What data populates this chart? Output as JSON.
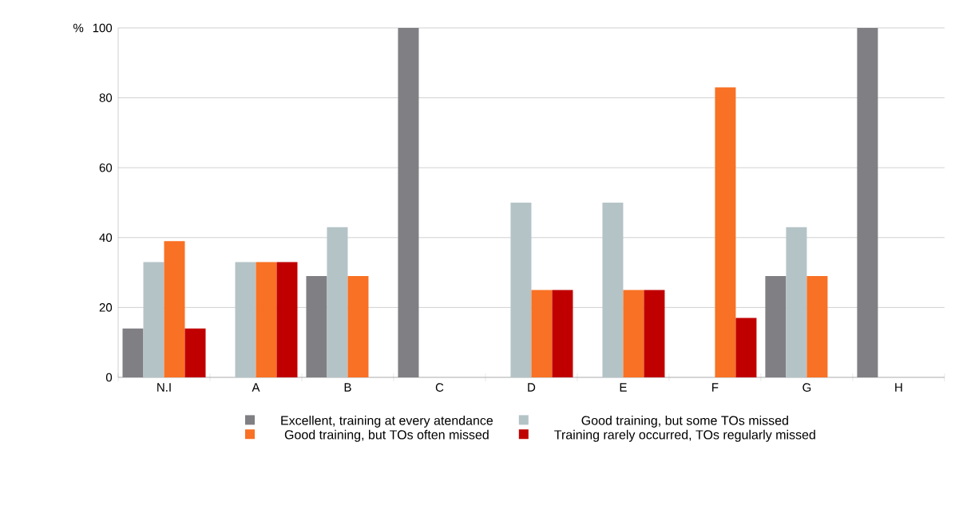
{
  "chart_data": {
    "type": "bar",
    "ylabel": "%",
    "categories": [
      "N.I",
      "A",
      "B",
      "C",
      "D",
      "E",
      "F",
      "G",
      "H"
    ],
    "series": [
      {
        "name": "Excellent, training at every atendance",
        "color": "#7f7f84",
        "values": [
          14,
          0,
          29,
          100,
          0,
          0,
          0,
          29,
          100
        ]
      },
      {
        "name": "Good training, but some TOs missed",
        "color": "#b4c3c6",
        "values": [
          33,
          33,
          43,
          0,
          50,
          50,
          0,
          43,
          0
        ]
      },
      {
        "name": "Good training, but TOs often missed",
        "color": "#f87124",
        "values": [
          39,
          33,
          29,
          0,
          25,
          25,
          83,
          29,
          0
        ]
      },
      {
        "name": "Training rarely occurred, TOs regularly missed",
        "color": "#c00000",
        "values": [
          14,
          33,
          0,
          0,
          25,
          25,
          17,
          0,
          0
        ]
      }
    ],
    "ylim": [
      0,
      100
    ],
    "yticks": [
      0,
      20,
      40,
      60,
      80,
      100
    ],
    "grid": "y",
    "legend": "bottom"
  }
}
